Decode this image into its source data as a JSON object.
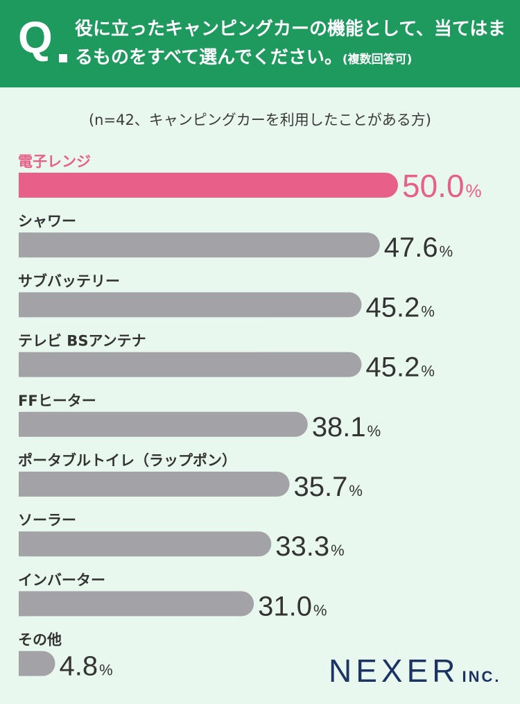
{
  "header": {
    "q_mark": "Q",
    "question": "役に立ったキャンピングカーの機能として、当てはまるものをすべて選んでください。",
    "note": "(複数回答可)"
  },
  "sample_note": "(n=42、キャンピングカーを利用したことがある方)",
  "brand": {
    "name": "NEXER",
    "suffix": "INC."
  },
  "colors": {
    "highlight": "#e8608a",
    "bar": "#a3a3a7",
    "value_text": "#333333",
    "header": "#1e9a5f",
    "background": "#e9f8ee"
  },
  "chart_data": {
    "type": "bar",
    "orientation": "horizontal",
    "unit": "%",
    "categories": [
      "電子レンジ",
      "シャワー",
      "サブバッテリー",
      "テレビ BSアンテナ",
      "FFヒーター",
      "ポータブルトイレ（ラップポン）",
      "ソーラー",
      "インバーター",
      "その他"
    ],
    "values": [
      50.0,
      47.6,
      45.2,
      45.2,
      38.1,
      35.7,
      33.3,
      31.0,
      4.8
    ],
    "value_labels": [
      "50.0",
      "47.6",
      "45.2",
      "45.2",
      "38.1",
      "35.7",
      "33.3",
      "31.0",
      "4.8"
    ],
    "highlight_index": 0
  }
}
